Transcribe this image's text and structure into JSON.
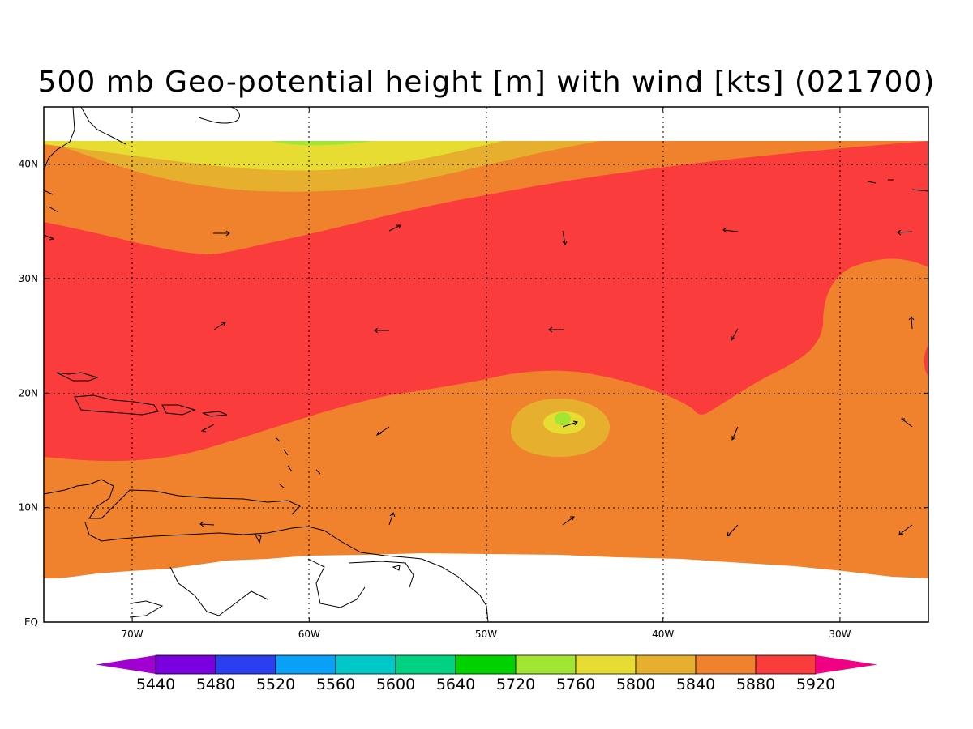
{
  "title": "500 mb Geo-potential height [m] with wind [kts] (021700)",
  "map": {
    "lon_ticks": [
      "70W",
      "60W",
      "50W",
      "40W",
      "30W"
    ],
    "lat_ticks": [
      "40N",
      "30N",
      "20N",
      "10N",
      "EQ"
    ],
    "lon_values": [
      -70,
      -60,
      -50,
      -40,
      -30
    ],
    "lat_values": [
      40,
      30,
      20,
      10,
      0
    ],
    "lon_range": [
      -75,
      -25
    ],
    "lat_range": [
      0,
      45
    ],
    "grid": "dotted"
  },
  "colorbar": {
    "labels": [
      "5440",
      "5480",
      "5520",
      "5560",
      "5600",
      "5640",
      "5720",
      "5760",
      "5800",
      "5840",
      "5880",
      "5920"
    ],
    "colors": [
      "#a000d0",
      "#7a00e0",
      "#2a3ff0",
      "#0aa0f8",
      "#00c8c8",
      "#00d282",
      "#00d200",
      "#a0e632",
      "#e6dc32",
      "#e6af2d",
      "#f0822d",
      "#fa3c3c",
      "#f00082"
    ]
  },
  "field_colors": {
    "c5720": "#a0e632",
    "c5760": "#e6dc32",
    "c5800": "#e6af2d",
    "c5840": "#f0822d",
    "c5880": "#fa3c3c",
    "missing": "#ffffff",
    "coast": "#000000"
  }
}
